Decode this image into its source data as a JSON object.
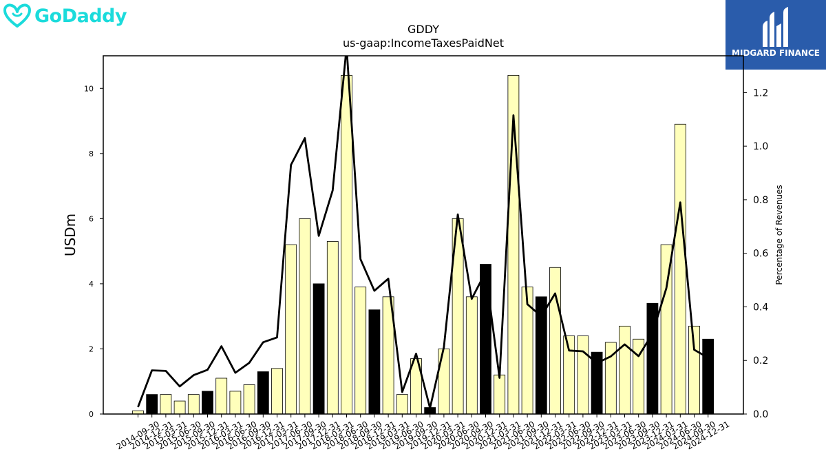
{
  "brand": {
    "name": "GoDaddy",
    "primary_color": "#1bdbdb"
  },
  "badge": {
    "name": "MIDGARD FINANCE",
    "background": "#2a5cab"
  },
  "chart_data": {
    "type": "bar",
    "title": "GDDY",
    "subtitle": "us-gaap:IncomeTaxesPaidNet",
    "ylabel": "USDm",
    "y2label": "Percentage of Revenues",
    "ylim": [
      0,
      11
    ],
    "y2lim": [
      0,
      1.3373
    ],
    "yticks": [
      0,
      2,
      4,
      6,
      8,
      10
    ],
    "y2ticks": [
      0.0,
      0.2,
      0.4,
      0.6,
      0.8,
      1.0,
      1.2
    ],
    "y2tick_labels": [
      "0.0",
      "0.2",
      "0.4",
      "0.6",
      "0.8",
      "1.0",
      "1.2"
    ],
    "categories": [
      "2014-09-30",
      "2014-12-31",
      "2015-03-31",
      "2015-06-30",
      "2015-09-30",
      "2015-12-31",
      "2016-03-31",
      "2016-06-30",
      "2016-09-30",
      "2016-12-31",
      "2017-03-31",
      "2017-06-30",
      "2017-09-30",
      "2017-12-31",
      "2018-03-31",
      "2018-06-30",
      "2018-09-30",
      "2018-12-31",
      "2019-03-31",
      "2019-06-30",
      "2019-09-30",
      "2019-12-31",
      "2020-03-31",
      "2020-06-30",
      "2020-09-30",
      "2020-12-31",
      "2021-03-31",
      "2021-06-30",
      "2021-09-30",
      "2021-12-31",
      "2022-03-31",
      "2022-06-30",
      "2022-09-30",
      "2022-12-31",
      "2023-03-31",
      "2023-06-30",
      "2023-09-30",
      "2023-12-31",
      "2024-03-31",
      "2024-06-30",
      "2024-09-30",
      "2024-12-31"
    ],
    "series": [
      {
        "type": "bar",
        "axis": "left",
        "values": [
          0.1,
          0.6,
          0.6,
          0.4,
          0.6,
          0.7,
          1.1,
          0.7,
          0.9,
          1.3,
          1.4,
          5.2,
          6.0,
          4.0,
          5.3,
          10.4,
          3.9,
          3.2,
          3.6,
          0.6,
          1.7,
          0.2,
          2.0,
          6.0,
          3.6,
          4.6,
          1.2,
          10.4,
          3.9,
          3.6,
          4.5,
          2.4,
          2.4,
          1.9,
          2.2,
          2.7,
          2.3,
          3.4,
          5.2,
          8.9,
          2.7,
          2.3
        ],
        "highlight_quarter": "12-31",
        "color_default": "#ffffbb",
        "color_highlight": "#000000"
      },
      {
        "type": "line",
        "axis": "right",
        "color": "#000000",
        "values": [
          0.026,
          0.163,
          0.161,
          0.103,
          0.145,
          0.165,
          0.253,
          0.154,
          0.191,
          0.268,
          0.286,
          0.93,
          1.03,
          0.665,
          0.835,
          1.37,
          0.578,
          0.46,
          0.505,
          0.082,
          0.225,
          0.022,
          0.25,
          0.745,
          0.43,
          0.53,
          0.135,
          1.115,
          0.41,
          0.365,
          0.45,
          0.237,
          0.234,
          0.19,
          0.215,
          0.26,
          0.216,
          0.3,
          0.47,
          0.79,
          0.24,
          0.21
        ]
      }
    ],
    "grid": false,
    "legend": "none"
  }
}
